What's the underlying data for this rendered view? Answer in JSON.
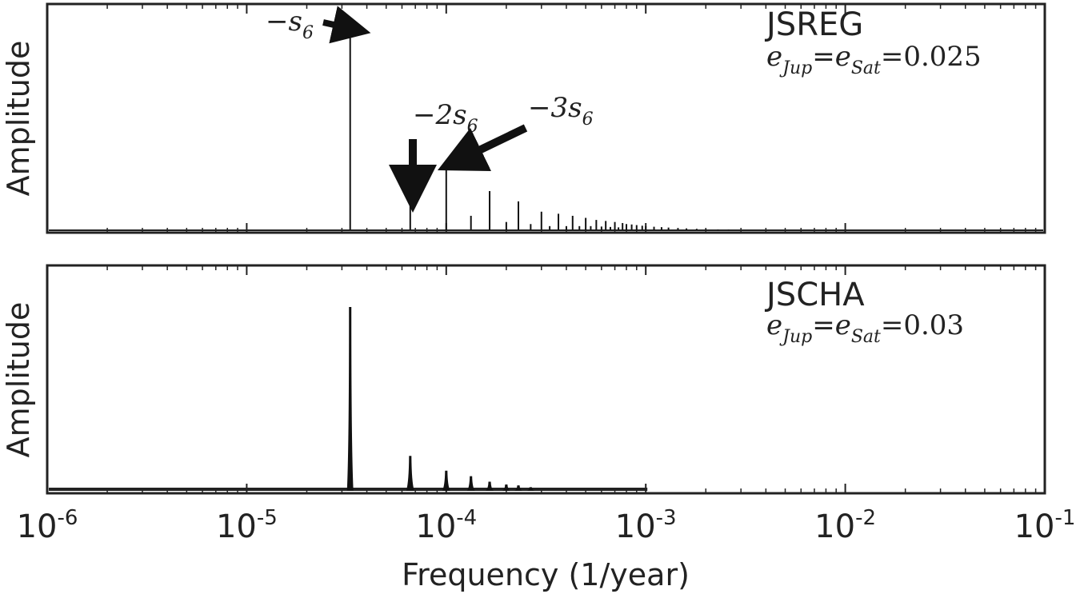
{
  "chart_data": [
    {
      "type": "line",
      "xscale": "log",
      "xlim": [
        1e-06,
        0.1
      ],
      "ylabel": "Amplitude",
      "y_ticks_labeled": false,
      "title": "JSREG",
      "condition": {
        "e1": "e",
        "s1": "Jup",
        "eq": "=",
        "e2": "e",
        "s2": "Sat",
        "value": "=0.025"
      },
      "annotations": [
        {
          "text": "−s",
          "sub": "6",
          "target_frequency": 3.3e-05
        },
        {
          "text": "−2s",
          "sub": "6",
          "target_frequency": 6.6e-05
        },
        {
          "text": "−3s",
          "sub": "6",
          "target_frequency": 0.0001
        }
      ],
      "peaks": {
        "x": [
          3.3e-05,
          6.6e-05,
          0.0001,
          0.000133,
          0.000165,
          0.0002,
          0.00023,
          0.000265,
          0.0003,
          0.00033,
          0.000365,
          0.0004,
          0.00043,
          0.000465,
          0.0005,
          0.00053,
          0.000565,
          0.0006,
          0.00063,
          0.000665,
          0.0007,
          0.00073,
          0.000765,
          0.0008,
          0.00085,
          0.0009,
          0.00096,
          0.001,
          0.0011,
          0.0012,
          0.0013,
          0.00145,
          0.0016,
          0.0018,
          0.002,
          0.0023,
          0.0026
        ],
        "y": [
          1.0,
          0.13,
          0.34,
          0.07,
          0.19,
          0.04,
          0.14,
          0.03,
          0.09,
          0.02,
          0.08,
          0.02,
          0.07,
          0.02,
          0.06,
          0.02,
          0.05,
          0.018,
          0.045,
          0.016,
          0.04,
          0.014,
          0.035,
          0.03,
          0.028,
          0.025,
          0.022,
          0.02,
          0.017,
          0.015,
          0.013,
          0.011,
          0.009,
          0.007,
          0.005,
          0.004,
          0.003
        ]
      }
    },
    {
      "type": "area",
      "xscale": "log",
      "xlim": [
        1e-06,
        0.1
      ],
      "xlabel": "Frequency (1/year)",
      "ylabel": "Amplitude",
      "y_ticks_labeled": false,
      "title": "JSCHA",
      "condition": {
        "e1": "e",
        "s1": "Jup",
        "eq": "=",
        "e2": "e",
        "s2": "Sat",
        "value": "=0.03"
      },
      "x_ticks": [
        {
          "base": "10",
          "exp": "-6"
        },
        {
          "base": "10",
          "exp": "-5"
        },
        {
          "base": "10",
          "exp": "-4"
        },
        {
          "base": "10",
          "exp": "-3"
        },
        {
          "base": "10",
          "exp": "-2"
        },
        {
          "base": "10",
          "exp": "-1"
        }
      ],
      "peaks": {
        "x": [
          3.3e-05,
          6.6e-05,
          0.0001,
          0.000133,
          0.000165,
          0.0002,
          0.00023,
          0.000265
        ],
        "y": [
          1.0,
          0.19,
          0.11,
          0.08,
          0.05,
          0.035,
          0.03,
          0.02
        ],
        "width_fraction": [
          0.04,
          0.05,
          0.05,
          0.05,
          0.05,
          0.05,
          0.05,
          0.05
        ]
      }
    }
  ]
}
